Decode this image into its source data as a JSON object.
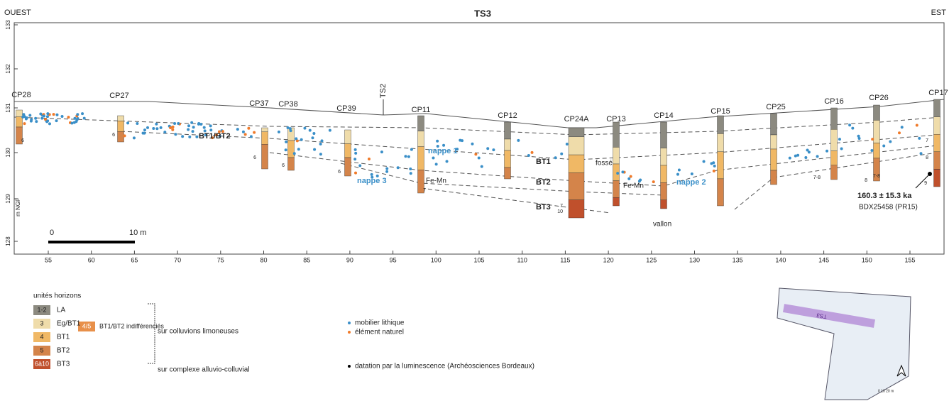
{
  "header": {
    "left": "OUEST",
    "title": "TS3",
    "right": "EST"
  },
  "y_axis": {
    "unit": "m NGF",
    "ticks": [
      "133",
      "132",
      "131",
      "130",
      "129",
      "128"
    ]
  },
  "x_axis": {
    "ticks": [
      55,
      60,
      65,
      70,
      75,
      80,
      85,
      90,
      95,
      100,
      105,
      110,
      115,
      120,
      125,
      130,
      135,
      140,
      145,
      150,
      155
    ]
  },
  "profiles": [
    "CP28",
    "CP27",
    "CP37",
    "CP38",
    "CP39",
    "TS2",
    "CP11",
    "CP12",
    "CP24A",
    "CP13",
    "CP14",
    "CP15",
    "CP25",
    "CP16",
    "CP26",
    "CP17"
  ],
  "section_labels": {
    "bt1_bt2": "BT1/BT2",
    "nappe_1": "nappe 1",
    "nappe_2": "nappe 2",
    "nappe_3": "nappe 3",
    "bt1": "BT1",
    "bt2": "BT2",
    "bt3": "BT3",
    "fosse": "fossé",
    "fe_mn_1": "Fe-Mn",
    "fe_mn_2": "Fe-Mn",
    "vallon": "vallon",
    "date": "160.3 ± 15.3 ka",
    "sample": "BDX25458 (PR15)"
  },
  "small_numbers": [
    "6",
    "6",
    "6",
    "6",
    "6",
    "7",
    "7",
    "10",
    "7-8",
    "7-8",
    "8",
    "7",
    "8",
    "9"
  ],
  "scale_bar": {
    "start": "0",
    "end": "10 m"
  },
  "legend": {
    "title": "unités horizons",
    "items": [
      {
        "code": "1-2",
        "label": "LA"
      },
      {
        "code": "3",
        "label": "Eg/BT1"
      },
      {
        "code": "4",
        "label": "BT1"
      },
      {
        "code": "5",
        "label": "BT2"
      },
      {
        "code": "6à10",
        "label": "BT3"
      }
    ],
    "combined": {
      "code": "4/5",
      "label": "BT1/BT2 indifférenciés"
    },
    "group_upper": "sur colluvions limoneuses",
    "group_lower": "sur complexe alluvio-colluvial",
    "markers": [
      "mobilier lithique",
      "élément naturel",
      "datation par la luminescence (Archéosciences Bordeaux)"
    ]
  },
  "inset": {
    "label": "TS3",
    "scale": "0 10 20 m"
  }
}
